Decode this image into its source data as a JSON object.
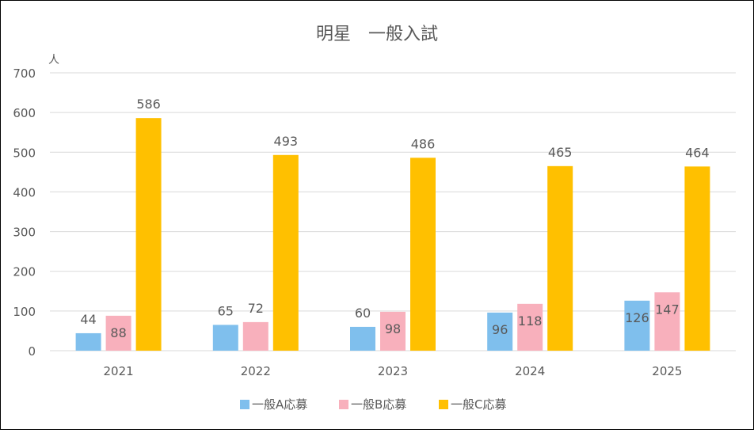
{
  "chart_data": {
    "type": "bar",
    "title": "明星　一般入試",
    "ylabel": "人",
    "xlabel": "",
    "ylim": [
      0,
      700
    ],
    "yticks": [
      0,
      100,
      200,
      300,
      400,
      500,
      600,
      700
    ],
    "grid": true,
    "legend_position": "bottom",
    "categories": [
      "2021",
      "2022",
      "2023",
      "2024",
      "2025"
    ],
    "series": [
      {
        "name": "一般A応募",
        "color": "#7FBFED",
        "values": [
          44,
          65,
          60,
          96,
          126
        ]
      },
      {
        "name": "一般B応募",
        "color": "#F8B0BC",
        "values": [
          88,
          72,
          98,
          118,
          147
        ]
      },
      {
        "name": "一般C応募",
        "color": "#FFC000",
        "values": [
          586,
          493,
          486,
          465,
          464
        ]
      }
    ]
  }
}
